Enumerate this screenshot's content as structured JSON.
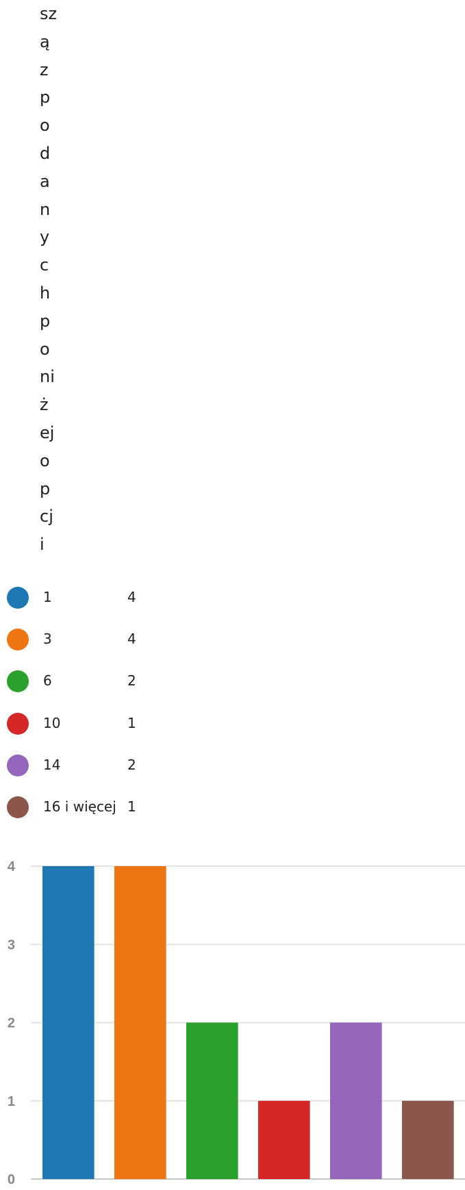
{
  "title_fragments": [
    "sz",
    "ą",
    "z",
    "p",
    "o",
    "d",
    "a",
    "n",
    "y",
    "c",
    "h",
    "p",
    "o",
    "ni",
    "ż",
    "ej",
    "o",
    "p",
    "cj",
    "i"
  ],
  "legend": [
    {
      "label": "1",
      "value": "4",
      "color": "#1f77b4"
    },
    {
      "label": "3",
      "value": "4",
      "color": "#ef7412"
    },
    {
      "label": "6",
      "value": "2",
      "color": "#2ca02c"
    },
    {
      "label": "10",
      "value": "1",
      "color": "#d62728"
    },
    {
      "label": "14",
      "value": "2",
      "color": "#9467bd"
    },
    {
      "label": "16 i więcej",
      "value": "1",
      "color": "#8c564b"
    }
  ],
  "chart_data": {
    "type": "bar",
    "categories": [
      "1",
      "3",
      "6",
      "10",
      "14",
      "16 i więcej"
    ],
    "values": [
      4,
      4,
      2,
      1,
      2,
      1
    ],
    "colors": [
      "#1f77b4",
      "#ef7412",
      "#2ca02c",
      "#d62728",
      "#9467bd",
      "#8c564b"
    ],
    "ylim": [
      0,
      4
    ],
    "yticks": [
      "0",
      "1",
      "2",
      "3",
      "4"
    ],
    "grid": true,
    "title": "",
    "xlabel": "",
    "ylabel": ""
  }
}
